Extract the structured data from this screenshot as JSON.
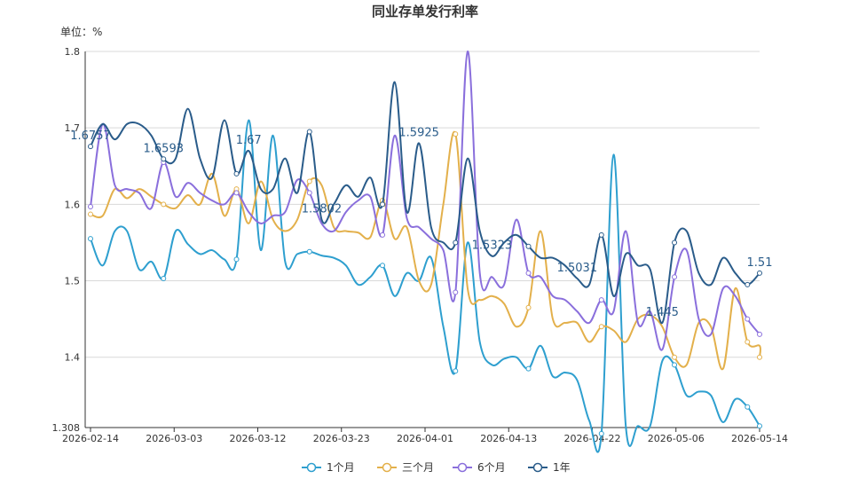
{
  "chart_data": {
    "type": "line",
    "title": "同业存单发行利率",
    "unit_label": "单位：%",
    "x_tick_labels": [
      "2026-02-14",
      "2026-03-03",
      "2026-03-12",
      "2026-03-23",
      "2026-04-01",
      "2026-04-13",
      "2026-04-22",
      "2026-05-06",
      "2026-05-14"
    ],
    "y_ticks": [
      1.308,
      1.4,
      1.5,
      1.6,
      1.7,
      1.8
    ],
    "ylim": [
      1.308,
      1.8
    ],
    "grid": true,
    "legend_position": "bottom",
    "series": [
      {
        "name": "1个月",
        "color": "#2e9fcf",
        "values": [
          1.555,
          1.52,
          1.565,
          1.565,
          1.515,
          1.525,
          1.503,
          1.565,
          1.548,
          1.535,
          1.54,
          1.528,
          1.528,
          1.71,
          1.54,
          1.69,
          1.525,
          1.535,
          1.538,
          1.533,
          1.53,
          1.52,
          1.495,
          1.505,
          1.52,
          1.48,
          1.51,
          1.5,
          1.53,
          1.44,
          1.382,
          1.55,
          1.42,
          1.39,
          1.398,
          1.4,
          1.385,
          1.415,
          1.375,
          1.38,
          1.37,
          1.317,
          1.3,
          1.665,
          1.31,
          1.31,
          1.31,
          1.395,
          1.39,
          1.35,
          1.355,
          1.35,
          1.315,
          1.345,
          1.335,
          1.31
        ]
      },
      {
        "name": "三个月",
        "color": "#e3b04b",
        "values": [
          1.587,
          1.585,
          1.62,
          1.608,
          1.62,
          1.61,
          1.6,
          1.595,
          1.612,
          1.6,
          1.64,
          1.585,
          1.62,
          1.575,
          1.63,
          1.58,
          1.565,
          1.58,
          1.63,
          1.625,
          1.57,
          1.565,
          1.563,
          1.557,
          1.605,
          1.555,
          1.57,
          1.5,
          1.495,
          1.6,
          1.692,
          1.49,
          1.475,
          1.48,
          1.47,
          1.44,
          1.465,
          1.565,
          1.45,
          1.445,
          1.445,
          1.42,
          1.44,
          1.435,
          1.42,
          1.45,
          1.455,
          1.44,
          1.4,
          1.39,
          1.445,
          1.44,
          1.385,
          1.49,
          1.42,
          1.415,
          1.4
        ]
      },
      {
        "name": "6个月",
        "color": "#8a6fdc",
        "values": [
          1.597,
          1.705,
          1.625,
          1.62,
          1.615,
          1.595,
          1.655,
          1.61,
          1.628,
          1.615,
          1.605,
          1.6,
          1.615,
          1.59,
          1.575,
          1.585,
          1.59,
          1.632,
          1.615,
          1.575,
          1.565,
          1.59,
          1.605,
          1.61,
          1.56,
          1.69,
          1.582,
          1.57,
          1.555,
          1.54,
          1.485,
          1.8,
          1.51,
          1.505,
          1.495,
          1.58,
          1.51,
          1.505,
          1.48,
          1.475,
          1.46,
          1.445,
          1.475,
          1.46,
          1.565,
          1.445,
          1.46,
          1.41,
          1.505,
          1.54,
          1.45,
          1.43,
          1.49,
          1.48,
          1.45,
          1.43
        ]
      },
      {
        "name": "1年",
        "color": "#2a5c8a",
        "values": [
          1.6757,
          1.705,
          1.685,
          1.705,
          1.705,
          1.69,
          1.6593,
          1.66,
          1.725,
          1.66,
          1.635,
          1.71,
          1.64,
          1.67,
          1.62,
          1.62,
          1.66,
          1.615,
          1.695,
          1.58,
          1.6,
          1.625,
          1.61,
          1.635,
          1.6,
          1.76,
          1.59,
          1.68,
          1.57,
          1.55,
          1.55,
          1.66,
          1.565,
          1.5323,
          1.55,
          1.56,
          1.545,
          1.53,
          1.53,
          1.52,
          1.5031,
          1.495,
          1.56,
          1.48,
          1.535,
          1.52,
          1.515,
          1.445,
          1.55,
          1.565,
          1.51,
          1.495,
          1.53,
          1.51,
          1.495,
          1.51
        ]
      }
    ],
    "data_labels": [
      {
        "series": "1年",
        "text": "1.6757"
      },
      {
        "series": "1年",
        "text": "1.6593"
      },
      {
        "series": "1年",
        "text": "1.67"
      },
      {
        "series": "1年",
        "text": "1.5802"
      },
      {
        "series": "1年",
        "text": "1.5925"
      },
      {
        "series": "1年",
        "text": "1.5323"
      },
      {
        "series": "1年",
        "text": "1.5031"
      },
      {
        "series": "1年",
        "text": "1.445"
      },
      {
        "series": "1年",
        "text": "1.51"
      }
    ]
  }
}
